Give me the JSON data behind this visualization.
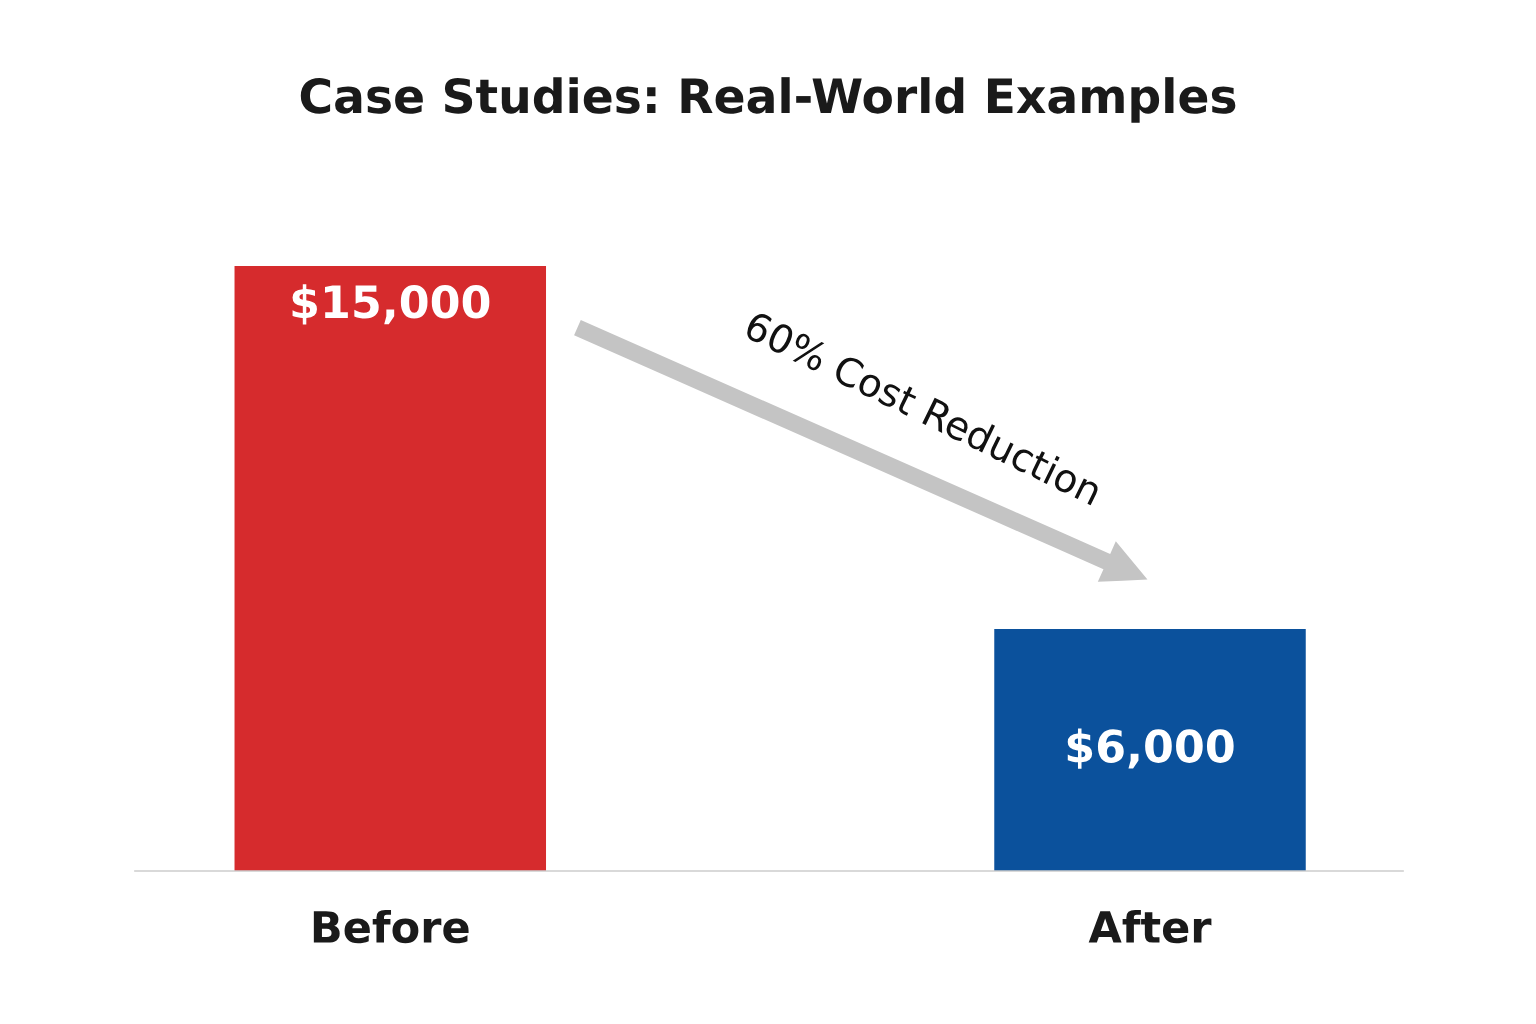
{
  "chart_data": {
    "type": "bar",
    "title": "Case Studies: Real-World Examples",
    "categories": [
      "Before",
      "After"
    ],
    "values": [
      15000,
      6000
    ],
    "colors": [
      "#d62b2d",
      "#0b519c"
    ],
    "value_labels": [
      "$15,000",
      "$6,000"
    ],
    "annotations": [
      "60% Cost Reduction"
    ],
    "tick_labels": "x"
  }
}
